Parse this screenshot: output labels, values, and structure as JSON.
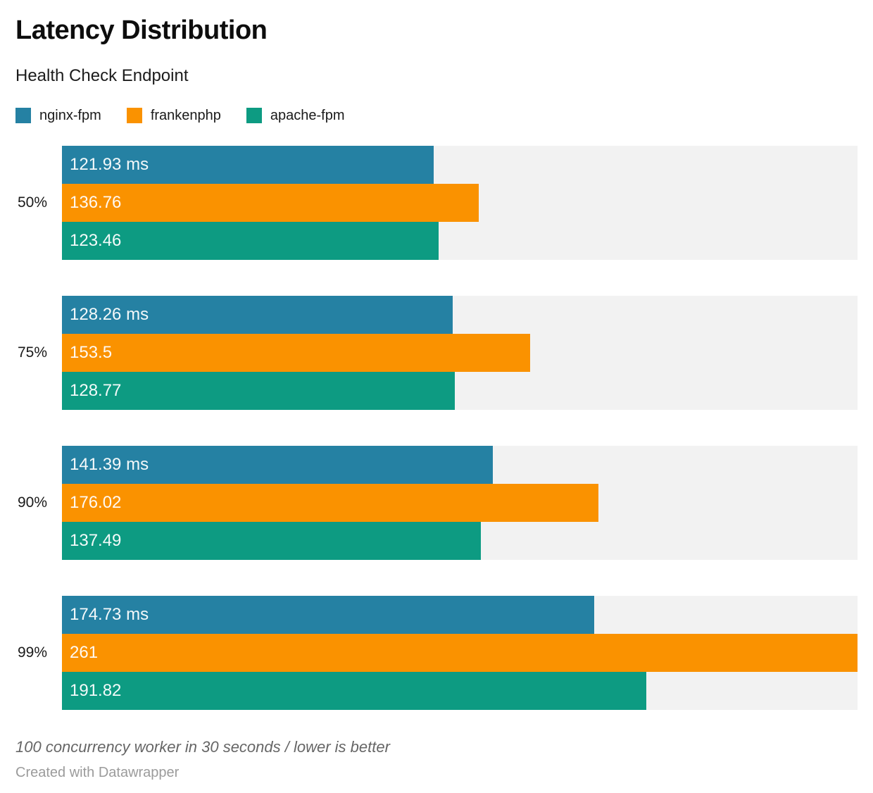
{
  "header": {
    "title": "Latency Distribution",
    "subtitle": "Health Check Endpoint"
  },
  "legend": {
    "items": [
      {
        "label": "nginx-fpm",
        "color": "#2581a3"
      },
      {
        "label": "frankenphp",
        "color": "#fa9200"
      },
      {
        "label": "apache-fpm",
        "color": "#0d9b82"
      }
    ]
  },
  "chart_data": {
    "type": "bar",
    "orientation": "horizontal",
    "title": "Latency Distribution",
    "subtitle": "Health Check Endpoint",
    "categories": [
      "50%",
      "75%",
      "90%",
      "99%"
    ],
    "series": [
      {
        "name": "nginx-fpm",
        "color": "#2581a3",
        "values": [
          121.93,
          128.26,
          141.39,
          174.73
        ],
        "labels": [
          "121.93 ms",
          "128.26 ms",
          "141.39 ms",
          "174.73 ms"
        ]
      },
      {
        "name": "frankenphp",
        "color": "#fa9200",
        "values": [
          136.76,
          153.5,
          176.02,
          261
        ],
        "labels": [
          "136.76",
          "153.5",
          "176.02",
          "261"
        ]
      },
      {
        "name": "apache-fpm",
        "color": "#0d9b82",
        "values": [
          123.46,
          128.77,
          137.49,
          191.82
        ],
        "labels": [
          "123.46",
          "128.77",
          "137.49",
          "191.82"
        ]
      }
    ],
    "unit": "ms",
    "xlim": [
      0,
      261
    ],
    "grid": false,
    "track_color": "#f2f2f2",
    "legend_position": "top"
  },
  "footer": {
    "footnote": "100 concurrency worker in 30 seconds / lower is better",
    "attribution": "Created with Datawrapper"
  }
}
